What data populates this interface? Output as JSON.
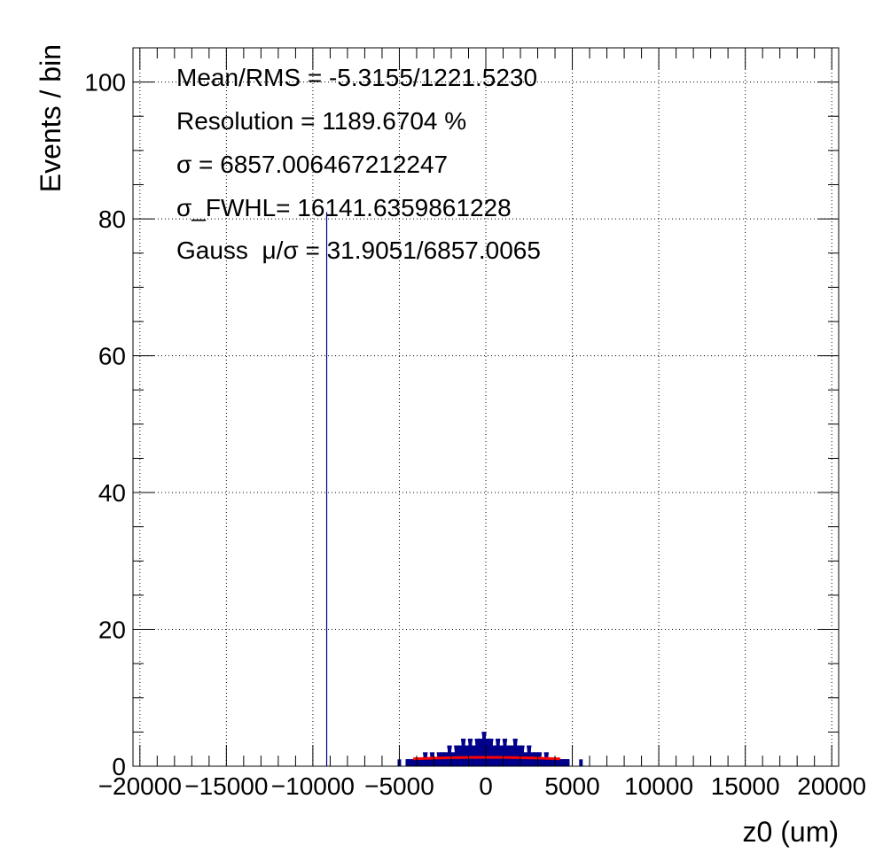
{
  "chart_data": {
    "type": "histogram",
    "xlabel": "z0 (um)",
    "ylabel": "Events / bin",
    "xlim": [
      -20400,
      20400
    ],
    "ylim": [
      0,
      105
    ],
    "x_ticks": [
      {
        "value": -20000,
        "label": "−20000"
      },
      {
        "value": -15000,
        "label": "−15000"
      },
      {
        "value": -10000,
        "label": "−10000"
      },
      {
        "value": -5000,
        "label": "−5000"
      },
      {
        "value": 0,
        "label": "0"
      },
      {
        "value": 5000,
        "label": "5000"
      },
      {
        "value": 10000,
        "label": "10000"
      },
      {
        "value": 15000,
        "label": "15000"
      },
      {
        "value": 20000,
        "label": "20000"
      }
    ],
    "y_ticks": [
      {
        "value": 0,
        "label": "0"
      },
      {
        "value": 20,
        "label": "20"
      },
      {
        "value": 40,
        "label": "40"
      },
      {
        "value": 60,
        "label": "60"
      },
      {
        "value": 80,
        "label": "80"
      },
      {
        "value": 100,
        "label": "100"
      }
    ],
    "grid": true,
    "histogram": {
      "name": "z0",
      "color": "#00008b",
      "bins": [
        [
          -9200,
          81
        ],
        [
          -5000,
          1
        ],
        [
          -4500,
          1
        ],
        [
          -4300,
          1
        ],
        [
          -4100,
          1
        ],
        [
          -3900,
          1
        ],
        [
          -3700,
          1
        ],
        [
          -3500,
          2
        ],
        [
          -3300,
          1
        ],
        [
          -3100,
          2
        ],
        [
          -2900,
          1
        ],
        [
          -2700,
          2
        ],
        [
          -2500,
          2
        ],
        [
          -2300,
          2
        ],
        [
          -2100,
          3
        ],
        [
          -1900,
          2
        ],
        [
          -1700,
          3
        ],
        [
          -1500,
          3
        ],
        [
          -1300,
          4
        ],
        [
          -1100,
          3
        ],
        [
          -900,
          4
        ],
        [
          -700,
          3
        ],
        [
          -500,
          4
        ],
        [
          -300,
          4
        ],
        [
          -100,
          5
        ],
        [
          100,
          4
        ],
        [
          300,
          4
        ],
        [
          500,
          3
        ],
        [
          700,
          4
        ],
        [
          900,
          3
        ],
        [
          1100,
          4
        ],
        [
          1300,
          3
        ],
        [
          1500,
          3
        ],
        [
          1700,
          4
        ],
        [
          1900,
          3
        ],
        [
          2100,
          3
        ],
        [
          2300,
          2
        ],
        [
          2500,
          3
        ],
        [
          2700,
          2
        ],
        [
          2900,
          2
        ],
        [
          3100,
          2
        ],
        [
          3300,
          1
        ],
        [
          3500,
          2
        ],
        [
          3700,
          1
        ],
        [
          3900,
          1
        ],
        [
          4100,
          1
        ],
        [
          4300,
          1
        ],
        [
          4500,
          1
        ],
        [
          4700,
          1
        ],
        [
          5500,
          1
        ]
      ]
    },
    "fit": {
      "name": "Gaussian fit",
      "color": "#ff0000",
      "x_range": [
        -4200,
        4300
      ],
      "mu": 31.9051,
      "sigma": 6857.0065,
      "peak": 1.3
    },
    "annotations": [
      "Mean/RMS = -5.3155/1221.5230",
      "Resolution = 1189.6704 %",
      "σ = 6857.006467212247",
      "σ_FWHL= 16141.6359861228",
      "Gauss  μ/σ = 31.9051/6857.0065"
    ]
  }
}
